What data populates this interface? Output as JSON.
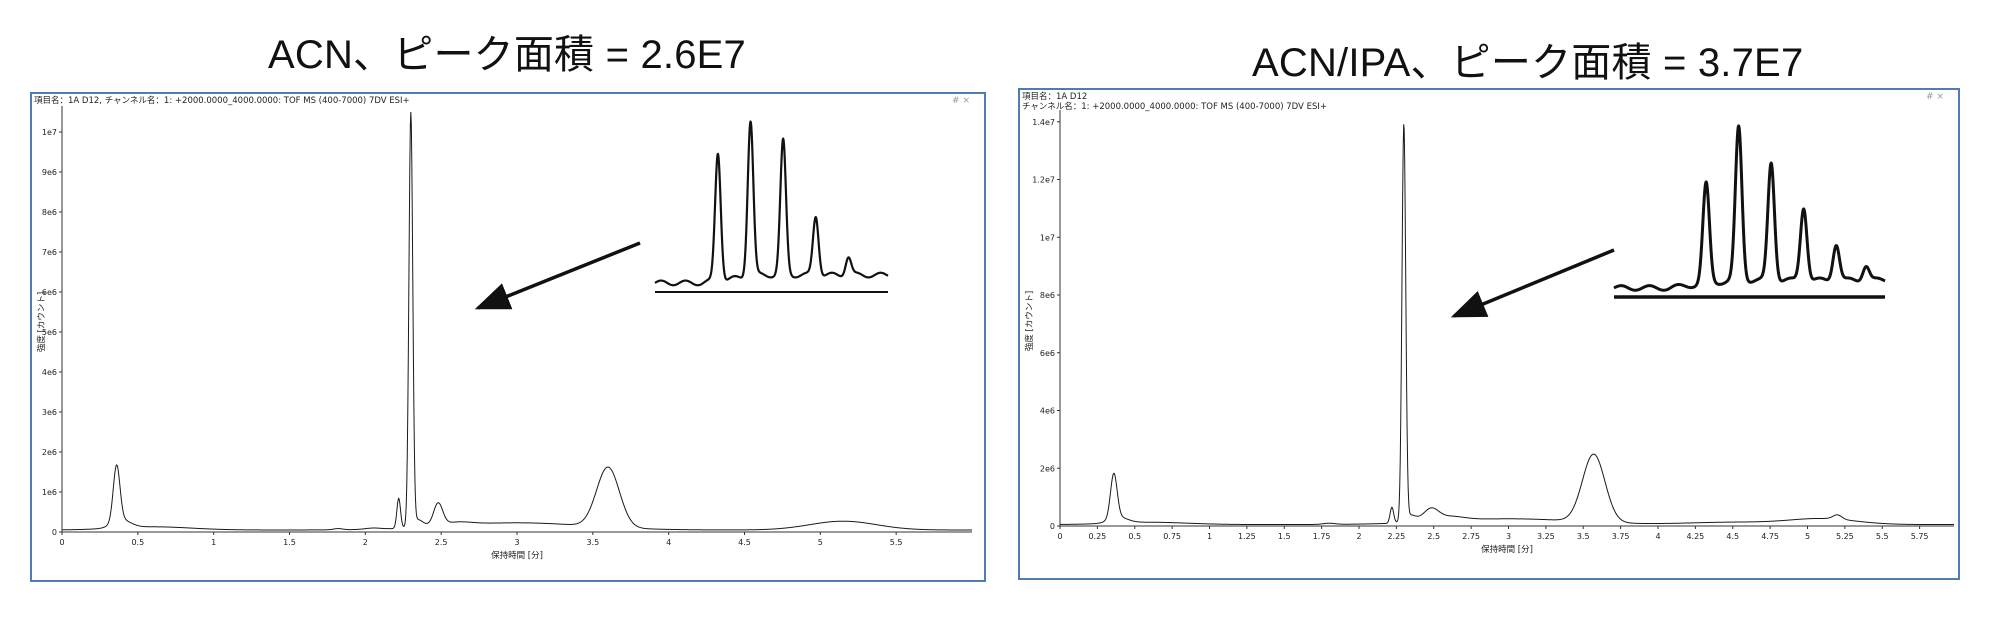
{
  "titles": {
    "left": "ACN、ピーク面積 = 2.6E7",
    "right": "ACN/IPA、ピーク面積 = 3.7E7"
  },
  "window": {
    "controls": "# ×"
  },
  "colors": {
    "panel_border": "#4f7db3",
    "trace": "#1a1a1a",
    "inset": "#111111"
  },
  "chart_data": [
    {
      "type": "line",
      "title": "ACN、ピーク面積 = 2.6E7",
      "header": "項目名：1A D12, チャンネル名：1: +2000.0000_4000.0000: TOF MS (400-7000) 7DV ESI+",
      "header_line2": "",
      "xlabel": "保持時間 [分]",
      "ylabel": "強度 [カウント]",
      "xlim": [
        0,
        6.0
      ],
      "ylim": [
        0,
        10500000
      ],
      "xticks": [
        0,
        0.5,
        1,
        1.5,
        2,
        2.5,
        3,
        3.5,
        4,
        4.5,
        5,
        5.5
      ],
      "xtick_labels": [
        "0",
        "0.5",
        "1",
        "1.5",
        "2",
        "2.5",
        "3",
        "3.5",
        "4",
        "4.5",
        "5",
        "5.5"
      ],
      "yticks": [
        0,
        1000000,
        2000000,
        3000000,
        4000000,
        5000000,
        6000000,
        7000000,
        8000000,
        9000000,
        10000000
      ],
      "ytick_labels": [
        "0",
        "1e6",
        "2e6",
        "3e6",
        "4e6",
        "5e6",
        "6e6",
        "7e6",
        "8e6",
        "9e6",
        "1e7"
      ],
      "baseline": 50000,
      "peaks": [
        {
          "x": 0.36,
          "y": 1400000,
          "w": 0.022
        },
        {
          "x": 0.39,
          "y": 200000,
          "w": 0.06
        },
        {
          "x": 0.6,
          "y": 80000,
          "w": 0.25
        },
        {
          "x": 1.82,
          "y": 30000,
          "w": 0.03
        },
        {
          "x": 2.05,
          "y": 30000,
          "w": 0.05
        },
        {
          "x": 2.22,
          "y": 750000,
          "w": 0.012
        },
        {
          "x": 2.3,
          "y": 10300000,
          "w": 0.0125
        },
        {
          "x": 2.34,
          "y": 200000,
          "w": 0.04
        },
        {
          "x": 2.48,
          "y": 550000,
          "w": 0.03
        },
        {
          "x": 2.6,
          "y": 80000,
          "w": 0.1
        },
        {
          "x": 3.0,
          "y": 180000,
          "w": 0.45
        },
        {
          "x": 3.6,
          "y": 1500000,
          "w": 0.075
        },
        {
          "x": 5.15,
          "y": 220000,
          "w": 0.22
        }
      ]
    },
    {
      "type": "line",
      "title": "ACN/IPA、ピーク面積 = 3.7E7",
      "header": "項目名：1A D12",
      "header_line2": "チャンネル名：1: +2000.0000_4000.0000: TOF MS (400-7000) 7DV ESI+",
      "xlabel": "保持時間 [分]",
      "ylabel": "強度 [カウント]",
      "xlim": [
        0,
        5.98
      ],
      "ylim": [
        0,
        14200000
      ],
      "xticks": [
        0,
        0.25,
        0.5,
        0.75,
        1,
        1.25,
        1.5,
        1.75,
        2,
        2.25,
        2.5,
        2.75,
        3,
        3.25,
        3.5,
        3.75,
        4,
        4.25,
        4.5,
        4.75,
        5,
        5.25,
        5.5,
        5.75
      ],
      "xtick_labels": [
        "0",
        "0.25",
        "0.5",
        "0.75",
        "1",
        "1.25",
        "1.5",
        "1.75",
        "2",
        "2.25",
        "2.5",
        "2.75",
        "3",
        "3.25",
        "3.5",
        "3.75",
        "4",
        "4.25",
        "4.5",
        "4.75",
        "5",
        "5.25",
        "5.5",
        "5.75"
      ],
      "yticks": [
        0,
        2000000,
        4000000,
        6000000,
        8000000,
        10000000,
        12000000,
        14000000
      ],
      "ytick_labels": [
        "0",
        "2e6",
        "4e6",
        "6e6",
        "8e6",
        "1e7",
        "1.2e7",
        "1.4e7"
      ],
      "baseline": 50000,
      "peaks": [
        {
          "x": 0.36,
          "y": 1550000,
          "w": 0.022
        },
        {
          "x": 0.39,
          "y": 200000,
          "w": 0.06
        },
        {
          "x": 0.6,
          "y": 80000,
          "w": 0.25
        },
        {
          "x": 1.8,
          "y": 40000,
          "w": 0.04
        },
        {
          "x": 2.22,
          "y": 550000,
          "w": 0.012
        },
        {
          "x": 2.3,
          "y": 13700000,
          "w": 0.0125
        },
        {
          "x": 2.34,
          "y": 250000,
          "w": 0.04
        },
        {
          "x": 2.48,
          "y": 400000,
          "w": 0.05
        },
        {
          "x": 2.6,
          "y": 150000,
          "w": 0.1
        },
        {
          "x": 3.0,
          "y": 200000,
          "w": 0.45
        },
        {
          "x": 3.57,
          "y": 2350000,
          "w": 0.075
        },
        {
          "x": 4.5,
          "y": 80000,
          "w": 0.3
        },
        {
          "x": 5.1,
          "y": 200000,
          "w": 0.22
        },
        {
          "x": 5.2,
          "y": 150000,
          "w": 0.03
        }
      ]
    }
  ],
  "insets": [
    {
      "peaks": [
        {
          "x": 0.27,
          "h": 0.82
        },
        {
          "x": 0.41,
          "h": 1.0
        },
        {
          "x": 0.55,
          "h": 0.86
        },
        {
          "x": 0.69,
          "h": 0.38
        },
        {
          "x": 0.83,
          "h": 0.12
        }
      ]
    },
    {
      "peaks": [
        {
          "x": 0.34,
          "h": 0.65
        },
        {
          "x": 0.46,
          "h": 1.0
        },
        {
          "x": 0.58,
          "h": 0.77
        },
        {
          "x": 0.7,
          "h": 0.48
        },
        {
          "x": 0.82,
          "h": 0.24
        },
        {
          "x": 0.93,
          "h": 0.1
        }
      ]
    }
  ]
}
